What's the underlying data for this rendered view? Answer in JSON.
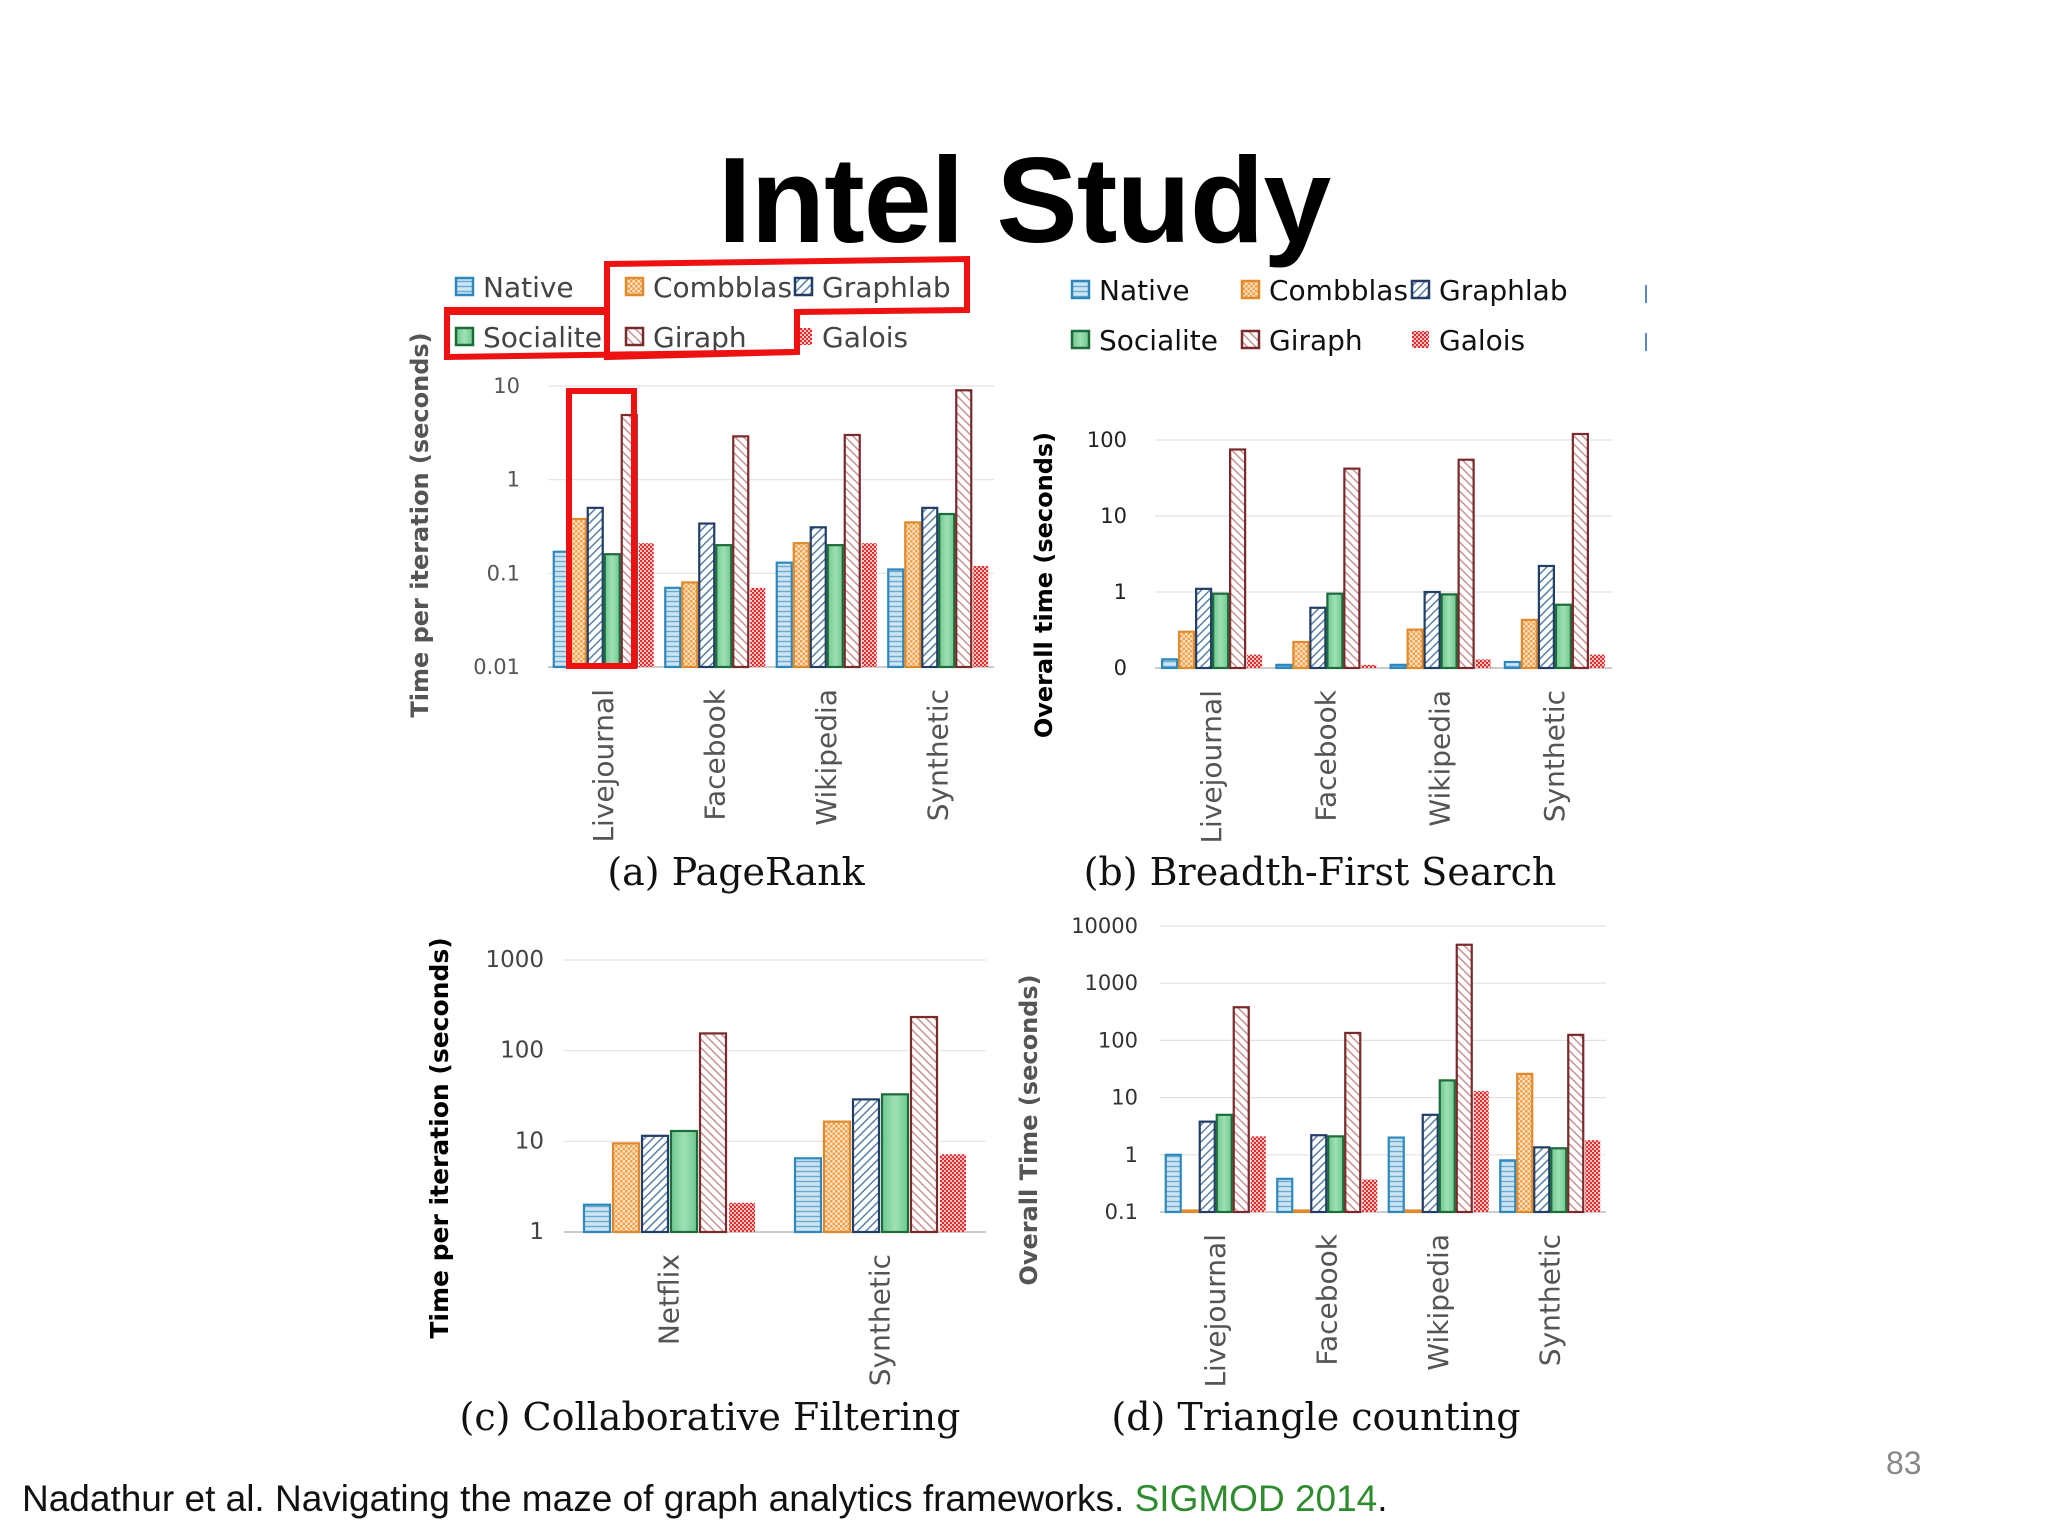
{
  "slide": {
    "title": "Intel Study",
    "citation_text": "Nadathur et al. Navigating the maze of graph analytics frameworks. ",
    "citation_venue": "SIGMOD 2014",
    "citation_end": ".",
    "page_number": "83"
  },
  "colors": {
    "highlight": "#ee1111",
    "venue": "#2e8b2e"
  },
  "legend_top_left": [
    "Native",
    "Combblas",
    "Graphlab",
    "Socialite",
    "Giraph",
    "Galois"
  ],
  "legend_top_right": [
    "Native",
    "Combblas",
    "Graphlab",
    "Socialite",
    "Giraph",
    "Galois"
  ],
  "chart_data": [
    {
      "id": "pagerank",
      "type": "bar",
      "caption": "(a) PageRank",
      "ylabel": "Time per iteration (seconds)",
      "yscale": "log",
      "ylim": [
        0.01,
        10
      ],
      "yticks": [
        0.01,
        0.1,
        1,
        10
      ],
      "yticklabels": [
        "0.01",
        "0.1",
        "1",
        "10"
      ],
      "categories": [
        "Livejournal",
        "Facebook",
        "Wikipedia",
        "Synthetic"
      ],
      "series": [
        {
          "name": "Native",
          "values": [
            0.17,
            0.07,
            0.13,
            0.11
          ]
        },
        {
          "name": "Combblas",
          "values": [
            0.38,
            0.08,
            0.21,
            0.35
          ]
        },
        {
          "name": "Graphlab",
          "values": [
            0.5,
            0.34,
            0.31,
            0.5
          ]
        },
        {
          "name": "Socialite",
          "values": [
            0.16,
            0.2,
            0.2,
            0.43
          ]
        },
        {
          "name": "Giraph",
          "values": [
            4.9,
            2.9,
            3.0,
            9.0
          ]
        },
        {
          "name": "Galois",
          "values": [
            0.21,
            0.07,
            0.21,
            0.12
          ]
        }
      ]
    },
    {
      "id": "bfs",
      "type": "bar",
      "caption": "(b) Breadth-First Search",
      "ylabel": "Overall time (seconds)",
      "yscale": "log",
      "ylim": [
        0.1,
        100
      ],
      "yticks": [
        0.1,
        1,
        10,
        100
      ],
      "yticklabels": [
        "0",
        "1",
        "10",
        "100"
      ],
      "categories": [
        "Livejournal",
        "Facebook",
        "Wikipedia",
        "Synthetic"
      ],
      "series": [
        {
          "name": "Native",
          "values": [
            0.13,
            0.11,
            0.11,
            0.12
          ]
        },
        {
          "name": "Combblas",
          "values": [
            0.3,
            0.22,
            0.32,
            0.43
          ]
        },
        {
          "name": "Graphlab",
          "values": [
            1.1,
            0.62,
            1.0,
            2.2
          ]
        },
        {
          "name": "Socialite",
          "values": [
            0.95,
            0.95,
            0.93,
            0.68
          ]
        },
        {
          "name": "Giraph",
          "values": [
            75,
            42,
            55,
            120
          ]
        },
        {
          "name": "Galois",
          "values": [
            0.15,
            0.11,
            0.13,
            0.15
          ]
        }
      ]
    },
    {
      "id": "cf",
      "type": "bar",
      "caption": "(c) Collaborative Filtering",
      "ylabel": "Time per iteration (seconds)",
      "yscale": "log",
      "ylim": [
        1,
        1000
      ],
      "yticks": [
        1,
        10,
        100,
        1000
      ],
      "yticklabels": [
        "1",
        "10",
        "100",
        "1000"
      ],
      "categories": [
        "Netflix",
        "Synthetic"
      ],
      "series": [
        {
          "name": "Native",
          "values": [
            2.0,
            6.5
          ]
        },
        {
          "name": "Combblas",
          "values": [
            9.5,
            16.5
          ]
        },
        {
          "name": "Graphlab",
          "values": [
            11.5,
            29
          ]
        },
        {
          "name": "Socialite",
          "values": [
            13,
            33
          ]
        },
        {
          "name": "Giraph",
          "values": [
            155,
            235
          ]
        },
        {
          "name": "Galois",
          "values": [
            2.1,
            7.2
          ]
        }
      ]
    },
    {
      "id": "tc",
      "type": "bar",
      "caption": "(d) Triangle counting",
      "ylabel": "Overall Time (seconds)",
      "yscale": "log",
      "ylim": [
        0.1,
        10000
      ],
      "yticks": [
        0.1,
        1,
        10,
        100,
        1000,
        10000
      ],
      "yticklabels": [
        "0.1",
        "1",
        "10",
        "100",
        "1000",
        "10000"
      ],
      "categories": [
        "Livejournal",
        "Facebook",
        "Wikipedia",
        "Synthetic"
      ],
      "series": [
        {
          "name": "Native",
          "values": [
            1.0,
            0.38,
            2.0,
            0.8
          ]
        },
        {
          "name": "Combblas",
          "values": [
            0.1,
            0.1,
            0.1,
            26
          ]
        },
        {
          "name": "Graphlab",
          "values": [
            3.8,
            2.2,
            5.0,
            1.35
          ]
        },
        {
          "name": "Socialite",
          "values": [
            5.0,
            2.1,
            20,
            1.3
          ]
        },
        {
          "name": "Giraph",
          "values": [
            380,
            135,
            4700,
            125
          ]
        },
        {
          "name": "Galois",
          "values": [
            2.1,
            0.37,
            13,
            1.8
          ]
        }
      ]
    }
  ]
}
